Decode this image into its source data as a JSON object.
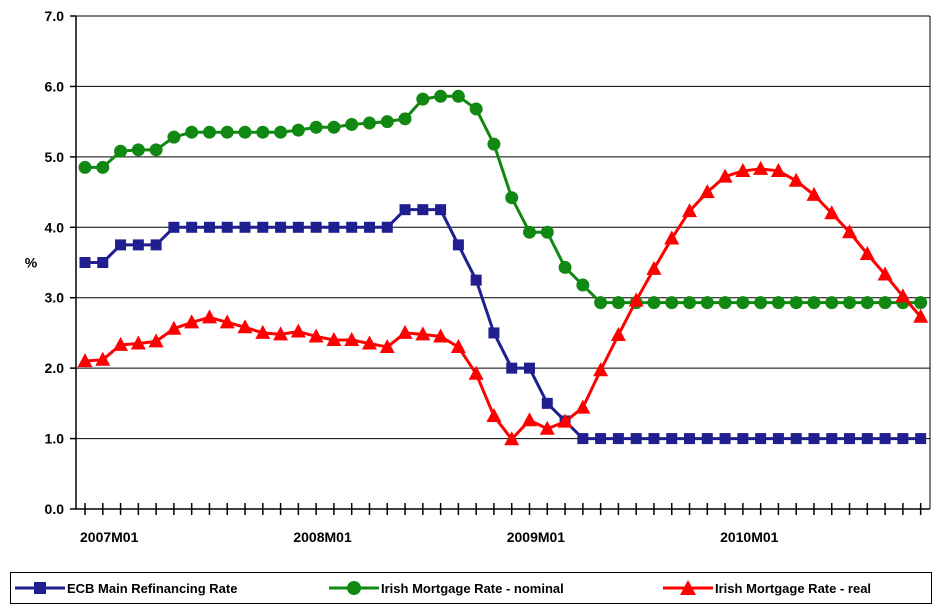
{
  "chart_data": {
    "type": "line",
    "title": "",
    "xlabel": "",
    "ylabel": "%",
    "ylim": [
      0,
      7
    ],
    "y_ticks": [
      "0.0",
      "1.0",
      "2.0",
      "3.0",
      "4.0",
      "5.0",
      "6.0",
      "7.0"
    ],
    "x_tick_labels": [
      {
        "label": "2007M01",
        "index": 0
      },
      {
        "label": "2008M01",
        "index": 12
      },
      {
        "label": "2009M01",
        "index": 24
      },
      {
        "label": "2010M01",
        "index": 36
      }
    ],
    "x_count": 48,
    "grid": "horizontal",
    "legend_position": "bottom",
    "series": [
      {
        "name": "ECB Main Refinancing Rate",
        "color": "#1f1f8f",
        "marker": "square",
        "values": [
          3.5,
          3.5,
          3.75,
          3.75,
          3.75,
          4.0,
          4.0,
          4.0,
          4.0,
          4.0,
          4.0,
          4.0,
          4.0,
          4.0,
          4.0,
          4.0,
          4.0,
          4.0,
          4.25,
          4.25,
          4.25,
          3.75,
          3.25,
          2.5,
          2.0,
          2.0,
          1.5,
          1.25,
          1.0,
          1.0,
          1.0,
          1.0,
          1.0,
          1.0,
          1.0,
          1.0,
          1.0,
          1.0,
          1.0,
          1.0,
          1.0,
          1.0,
          1.0,
          1.0,
          1.0,
          1.0,
          1.0,
          1.0
        ]
      },
      {
        "name": "Irish Mortgage Rate - nominal",
        "color": "#118811",
        "marker": "circle",
        "values": [
          4.85,
          4.85,
          5.08,
          5.1,
          5.1,
          5.28,
          5.35,
          5.35,
          5.35,
          5.35,
          5.35,
          5.35,
          5.38,
          5.42,
          5.42,
          5.46,
          5.48,
          5.5,
          5.54,
          5.82,
          5.86,
          5.86,
          5.68,
          5.18,
          4.42,
          3.93,
          3.93,
          3.43,
          3.18,
          2.93,
          2.93,
          2.93,
          2.93,
          2.93,
          2.93,
          2.93,
          2.93,
          2.93,
          2.93,
          2.93,
          2.93,
          2.93,
          2.93,
          2.93,
          2.93,
          2.93,
          2.93,
          2.93
        ]
      },
      {
        "name": "Irish Mortgage Rate - real",
        "color": "#ff0000",
        "marker": "triangle",
        "values": [
          2.1,
          2.12,
          2.33,
          2.35,
          2.38,
          2.56,
          2.65,
          2.72,
          2.65,
          2.58,
          2.5,
          2.48,
          2.52,
          2.45,
          2.4,
          2.4,
          2.35,
          2.3,
          2.5,
          2.48,
          2.45,
          2.3,
          1.92,
          1.32,
          0.99,
          1.26,
          1.14,
          1.24,
          1.44,
          1.97,
          2.47,
          2.96,
          3.41,
          3.84,
          4.23,
          4.5,
          4.72,
          4.8,
          4.83,
          4.8,
          4.66,
          4.46,
          4.2,
          3.93,
          3.62,
          3.33,
          3.02,
          2.73
        ]
      }
    ]
  }
}
